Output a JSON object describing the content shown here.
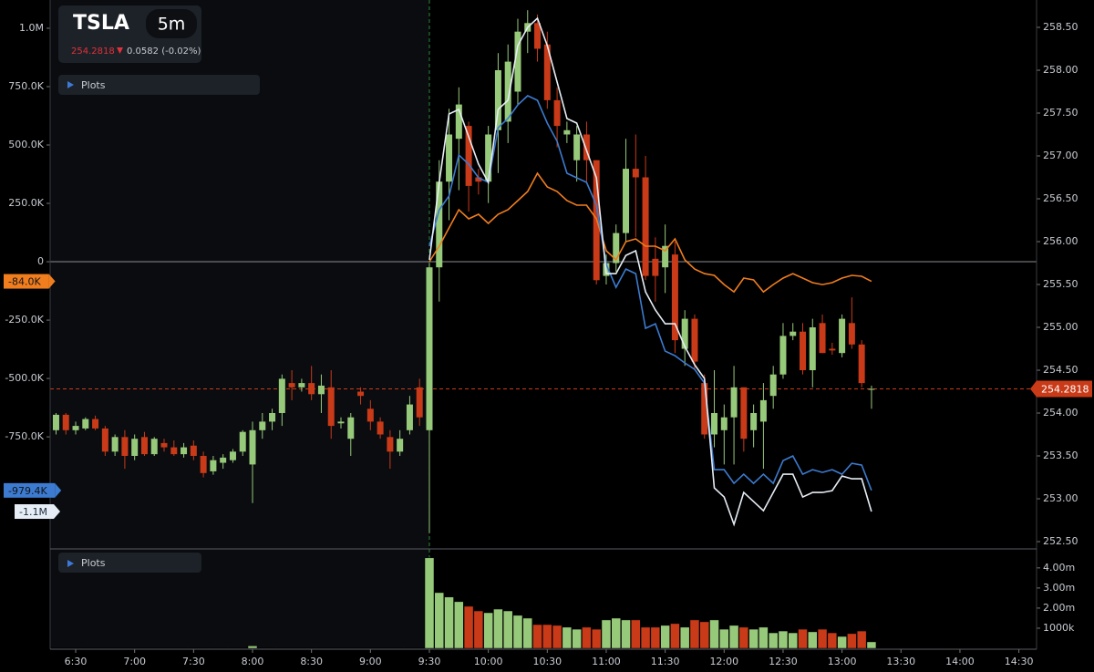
{
  "header": {
    "symbol": "TSLA",
    "interval": "5m",
    "change": "0.0582",
    "change_pct": "(-0.02%)",
    "plots": [
      "Plots",
      "Plots"
    ]
  },
  "chart_data": {
    "type": "candlestick",
    "x": [
      "6:20",
      "6:25",
      "6:30",
      "6:35",
      "6:40",
      "6:45",
      "6:50",
      "6:55",
      "7:00",
      "7:05",
      "7:10",
      "7:15",
      "7:20",
      "7:25",
      "7:30",
      "7:35",
      "7:40",
      "7:45",
      "7:50",
      "7:55",
      "8:00",
      "8:05",
      "8:10",
      "8:15",
      "8:20",
      "8:25",
      "8:30",
      "8:35",
      "8:40",
      "8:45",
      "8:50",
      "8:55",
      "9:00",
      "9:05",
      "9:10",
      "9:15",
      "9:20",
      "9:25",
      "9:30",
      "9:35",
      "9:40",
      "9:45",
      "9:50",
      "9:55",
      "10:00",
      "10:05",
      "10:10",
      "10:15",
      "10:20",
      "10:25",
      "10:30",
      "10:35",
      "10:40",
      "10:45",
      "10:50",
      "10:55",
      "11:00",
      "11:05",
      "11:10",
      "11:15",
      "11:20",
      "11:25",
      "11:30",
      "11:35",
      "11:40",
      "11:45",
      "11:50",
      "11:55",
      "12:00",
      "12:05",
      "12:10",
      "12:15",
      "12:20",
      "12:25",
      "12:30",
      "12:35",
      "12:40",
      "12:45",
      "12:50",
      "12:55",
      "13:00",
      "13:05",
      "13:10",
      "13:15"
    ],
    "open": [
      253.8,
      253.98,
      253.8,
      253.82,
      253.93,
      253.82,
      253.55,
      253.72,
      253.5,
      253.72,
      253.52,
      253.65,
      253.6,
      253.52,
      253.62,
      253.5,
      253.32,
      253.42,
      253.45,
      253.55,
      253.4,
      253.8,
      253.9,
      254.0,
      254.35,
      254.3,
      254.35,
      254.22,
      254.3,
      253.88,
      253.7,
      254.25,
      254.05,
      253.9,
      253.72,
      253.55,
      253.8,
      254.3,
      253.8,
      255.7,
      256.7,
      257.2,
      257.35,
      256.75,
      256.7,
      257.3,
      257.4,
      257.75,
      258.45,
      258.55,
      258.3,
      257.65,
      257.25,
      256.95,
      257.25,
      256.95,
      255.6,
      255.75,
      256.1,
      256.85,
      256.75,
      255.8,
      255.7,
      255.85,
      254.75,
      255.1,
      254.35,
      253.75,
      253.8,
      253.95,
      254.3,
      253.8,
      253.9,
      254.2,
      254.45,
      254.9,
      254.95,
      254.5,
      255.05,
      254.75,
      254.7,
      255.05,
      254.8,
      254.28
    ],
    "high": [
      254.0,
      254.0,
      253.9,
      253.95,
      253.97,
      253.85,
      253.75,
      253.8,
      253.75,
      253.78,
      253.72,
      253.7,
      253.68,
      253.65,
      253.68,
      253.55,
      253.5,
      253.52,
      253.58,
      253.8,
      253.9,
      254.0,
      254.05,
      254.45,
      254.5,
      254.4,
      254.55,
      254.45,
      254.5,
      253.95,
      254.0,
      254.3,
      254.15,
      253.95,
      253.8,
      253.8,
      254.2,
      254.4,
      255.75,
      256.95,
      257.55,
      257.8,
      257.4,
      256.85,
      257.35,
      258.2,
      258.3,
      258.6,
      258.7,
      258.65,
      258.45,
      257.8,
      257.4,
      257.35,
      257.4,
      256.95,
      255.85,
      256.2,
      257.2,
      257.25,
      257.0,
      256.05,
      256.2,
      256.0,
      255.2,
      255.15,
      254.45,
      254.5,
      254.1,
      254.55,
      254.3,
      254.1,
      254.35,
      254.55,
      255.05,
      255.05,
      255.05,
      255.1,
      255.15,
      254.82,
      255.15,
      255.35,
      254.85,
      254.32
    ],
    "low": [
      253.75,
      253.75,
      253.75,
      253.8,
      253.8,
      253.5,
      253.5,
      253.35,
      253.45,
      253.5,
      253.5,
      253.55,
      253.5,
      253.48,
      253.45,
      253.25,
      253.28,
      253.35,
      253.42,
      253.5,
      252.95,
      253.7,
      253.8,
      253.85,
      254.15,
      254.25,
      254.15,
      254.0,
      253.7,
      253.82,
      253.5,
      254.1,
      253.8,
      253.7,
      253.35,
      253.5,
      253.75,
      253.85,
      252.6,
      255.3,
      256.25,
      256.6,
      256.35,
      256.55,
      256.45,
      256.8,
      257.15,
      257.6,
      258.2,
      258.1,
      257.55,
      257.1,
      257.15,
      256.7,
      256.7,
      255.5,
      255.5,
      255.65,
      256.0,
      256.05,
      255.55,
      255.3,
      255.4,
      254.7,
      254.55,
      254.5,
      253.7,
      253.6,
      253.4,
      253.4,
      253.55,
      253.6,
      253.35,
      254.05,
      254.4,
      254.85,
      254.45,
      254.3,
      254.7,
      254.68,
      254.65,
      254.75,
      254.3,
      254.05
    ],
    "close": [
      253.98,
      253.8,
      253.85,
      253.93,
      253.82,
      253.55,
      253.72,
      253.5,
      253.7,
      253.52,
      253.7,
      253.6,
      253.52,
      253.6,
      253.5,
      253.3,
      253.45,
      253.48,
      253.55,
      253.78,
      253.8,
      253.9,
      254.0,
      254.4,
      254.3,
      254.35,
      254.22,
      254.32,
      253.85,
      253.9,
      253.95,
      254.2,
      253.9,
      253.75,
      253.55,
      253.7,
      254.1,
      253.95,
      255.7,
      256.7,
      257.25,
      257.6,
      256.65,
      256.7,
      257.25,
      258.0,
      258.1,
      258.45,
      258.55,
      258.25,
      257.65,
      257.35,
      257.3,
      257.25,
      256.95,
      255.55,
      255.75,
      256.1,
      256.85,
      256.75,
      255.6,
      255.6,
      255.95,
      254.85,
      255.1,
      254.6,
      253.75,
      254.0,
      253.95,
      254.3,
      253.7,
      254.0,
      254.15,
      254.45,
      254.9,
      254.95,
      254.5,
      255.0,
      254.7,
      254.73,
      255.1,
      254.8,
      254.35,
      254.2818
    ],
    "volume": [
      20000,
      20000,
      20000,
      20000,
      20000,
      20000,
      20000,
      20000,
      20000,
      20000,
      20000,
      20000,
      20000,
      20000,
      20000,
      20000,
      20000,
      20000,
      20000,
      20000,
      120000,
      20000,
      20000,
      20000,
      20000,
      20000,
      20000,
      20000,
      20000,
      20000,
      20000,
      20000,
      20000,
      20000,
      20000,
      20000,
      20000,
      20000,
      4500000,
      2770000,
      2550000,
      2320000,
      2090000,
      1860000,
      1770000,
      1950000,
      1860000,
      1640000,
      1500000,
      1180000,
      1180000,
      1140000,
      1050000,
      950000,
      1050000,
      950000,
      1410000,
      1500000,
      1410000,
      1410000,
      1050000,
      1050000,
      1140000,
      1230000,
      1050000,
      1410000,
      1320000,
      1410000,
      950000,
      1140000,
      1050000,
      950000,
      1050000,
      770000,
      860000,
      770000,
      950000,
      820000,
      950000,
      770000,
      590000,
      730000,
      860000,
      320000
    ],
    "up_color": "#97c97a",
    "down_color": "#c83a18",
    "series": [
      {
        "color": "#f07d1e",
        "tag": "-84.0K",
        "values": [
          null,
          null,
          null,
          null,
          null,
          null,
          null,
          null,
          null,
          null,
          null,
          null,
          null,
          null,
          null,
          null,
          null,
          null,
          null,
          null,
          null,
          null,
          null,
          null,
          null,
          null,
          null,
          null,
          null,
          null,
          null,
          null,
          null,
          null,
          null,
          null,
          null,
          null,
          0,
          66400,
          144500,
          222700,
          183600,
          203100,
          164100,
          203100,
          222700,
          261700,
          300800,
          378900,
          320300,
          300800,
          261700,
          242200,
          242200,
          183600,
          46900,
          7800,
          85900,
          97700,
          66400,
          66400,
          46900,
          97700,
          7800,
          -31300,
          -50800,
          -58600,
          -97700,
          -128900,
          -70300,
          -78100,
          -128900,
          -97700,
          -70300,
          -50800,
          -70300,
          -89800,
          -97700,
          -89800,
          -70300,
          -58600,
          -62500,
          -84000
        ]
      },
      {
        "color": "#3c7bcf",
        "tag": "-979.4K",
        "values": [
          null,
          null,
          null,
          null,
          null,
          null,
          null,
          null,
          null,
          null,
          null,
          null,
          null,
          null,
          null,
          null,
          null,
          null,
          null,
          null,
          null,
          null,
          null,
          null,
          null,
          null,
          null,
          null,
          null,
          null,
          null,
          null,
          null,
          null,
          null,
          null,
          null,
          null,
          66400,
          222700,
          281300,
          457000,
          418000,
          359400,
          339800,
          574200,
          613300,
          671900,
          710900,
          691400,
          593800,
          515600,
          378900,
          359400,
          339800,
          242200,
          -11700,
          -109400,
          -31300,
          -50800,
          -285200,
          -265600,
          -382800,
          -402300,
          -433600,
          -460900,
          -519500,
          -890600,
          -890600,
          -949200,
          -910200,
          -949200,
          -910200,
          -949200,
          -851600,
          -832000,
          -910200,
          -890600,
          -902300,
          -890600,
          -910200,
          -863300,
          -871100,
          -979400
        ]
      },
      {
        "color": "#e6edf5",
        "tag": "-1.1M",
        "values": [
          null,
          null,
          null,
          null,
          null,
          null,
          null,
          null,
          null,
          null,
          null,
          null,
          null,
          null,
          null,
          null,
          null,
          null,
          null,
          null,
          null,
          null,
          null,
          null,
          null,
          null,
          null,
          null,
          null,
          null,
          null,
          null,
          null,
          null,
          null,
          null,
          null,
          null,
          7800,
          339800,
          632800,
          652300,
          535200,
          418000,
          339800,
          652300,
          691400,
          925800,
          1003900,
          1042900,
          925800,
          769500,
          613300,
          593800,
          476600,
          359400,
          -50800,
          -50800,
          27300,
          46900,
          -128900,
          -207000,
          -265600,
          -265600,
          -363300,
          -441400,
          -500000,
          -968800,
          -1007800,
          -1125000,
          -988300,
          -1027300,
          -1066400,
          -988300,
          -910200,
          -910200,
          -1007800,
          -988300,
          -988300,
          -980500,
          -918000,
          -929700,
          -929700,
          -1070000
        ]
      }
    ],
    "xlim": [
      "6:17",
      "14:39"
    ],
    "xticks": [
      "6:30",
      "7:00",
      "7:30",
      "8:00",
      "8:30",
      "9:00",
      "9:30",
      "10:00",
      "10:30",
      "11:00",
      "11:30",
      "12:00",
      "12:30",
      "13:00",
      "13:30",
      "14:00",
      "14:30"
    ],
    "ylim": [
      -1230000,
      1121000
    ],
    "yticks": [
      {
        "value": 1000000,
        "label": "1.0M"
      },
      {
        "value": 750000,
        "label": "750.0K"
      },
      {
        "value": 500000,
        "label": "500.0K"
      },
      {
        "value": 250000,
        "label": "250.0K"
      },
      0,
      {
        "value": -250000,
        "label": "-250.0K"
      },
      {
        "value": -500000,
        "label": "-500.0K"
      },
      {
        "value": -750000,
        "label": "-750.0K"
      }
    ],
    "y2lim": [
      252.415,
      258.819
    ],
    "y2ticks": [
      {
        "value": 258.5,
        "label": "258.50"
      },
      {
        "value": 258,
        "label": "258.00"
      },
      {
        "value": 257.5,
        "label": "257.50"
      },
      {
        "value": 257,
        "label": "257.00"
      },
      {
        "value": 256.5,
        "label": "256.50"
      },
      {
        "value": 256,
        "label": "256.00"
      },
      {
        "value": 255.5,
        "label": "255.50"
      },
      {
        "value": 255,
        "label": "255.00"
      },
      {
        "value": 254.5,
        "label": "254.50"
      },
      {
        "value": 254,
        "label": "254.00"
      },
      {
        "value": 253.5,
        "label": "253.50"
      },
      {
        "value": 253,
        "label": "253.00"
      },
      {
        "value": 252.5,
        "label": "252.50"
      }
    ],
    "volume_ylim": [
      0,
      4900000
    ],
    "volume_yticks": [
      {
        "value": 4000000,
        "label": "4.00m"
      },
      {
        "value": 3000000,
        "label": "3.00m"
      },
      {
        "value": 2000000,
        "label": "2.00m"
      },
      {
        "value": 1000000,
        "label": "1000k"
      }
    ],
    "last_price": 254.2818,
    "last_price_color": "#c83a18",
    "session_start": "9:30"
  }
}
